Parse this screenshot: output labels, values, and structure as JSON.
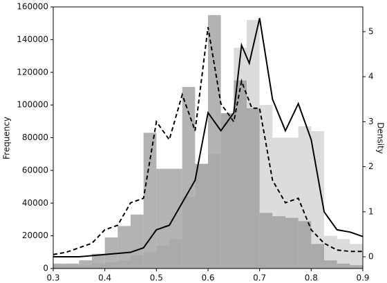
{
  "chart_data": {
    "type": "histogram",
    "ylabel": "Frequency",
    "y2label": "Density",
    "bins": [
      0.3,
      0.325,
      0.35,
      0.375,
      0.4,
      0.425,
      0.45,
      0.475,
      0.5,
      0.525,
      0.55,
      0.575,
      0.6,
      0.625,
      0.65,
      0.675,
      0.7,
      0.725,
      0.75,
      0.775,
      0.8,
      0.825,
      0.85,
      0.875,
      0.9
    ],
    "xlim": [
      0.3,
      0.9
    ],
    "xticks": [
      0.3,
      0.4,
      0.5,
      0.6,
      0.7,
      0.8,
      0.9
    ],
    "ylim": [
      0,
      160000
    ],
    "yticks": [
      0,
      20000,
      40000,
      60000,
      80000,
      100000,
      120000,
      140000,
      160000
    ],
    "y2lim": [
      -0.26,
      5.55
    ],
    "y2ticks": [
      0,
      1,
      2,
      3,
      4,
      5
    ],
    "series": [
      {
        "color": "#d0d0d0",
        "values": [
          2000,
          2000,
          2000,
          3000,
          4000,
          5000,
          8000,
          10000,
          14000,
          18000,
          44000,
          64000,
          70000,
          95000,
          135000,
          152000,
          100000,
          80000,
          80000,
          87000,
          84000,
          20000,
          18000,
          15000
        ]
      },
      {
        "color": "#9a9a9a",
        "values": [
          3000,
          3000,
          5000,
          9000,
          19000,
          26000,
          33000,
          83000,
          61000,
          61000,
          111000,
          64000,
          155000,
          95000,
          115000,
          98000,
          34000,
          32000,
          31000,
          29000,
          15000,
          5000,
          3000,
          2000
        ]
      }
    ],
    "lines": [
      {
        "color": "#000000",
        "linestyle": "dashed",
        "axis": "y2",
        "x": [
          0.3,
          0.325,
          0.35,
          0.375,
          0.4,
          0.425,
          0.45,
          0.475,
          0.5,
          0.525,
          0.55,
          0.575,
          0.6,
          0.625,
          0.65,
          0.665,
          0.685,
          0.7,
          0.725,
          0.75,
          0.775,
          0.8,
          0.825,
          0.85,
          0.875,
          0.9
        ],
        "values": [
          0.05,
          0.1,
          0.2,
          0.3,
          0.6,
          0.7,
          1.2,
          1.3,
          3.0,
          2.6,
          3.6,
          2.8,
          5.1,
          3.4,
          3.0,
          3.9,
          3.3,
          3.3,
          1.7,
          1.2,
          1.3,
          0.6,
          0.3,
          0.15,
          0.12,
          0.12
        ]
      },
      {
        "color": "#000000",
        "linestyle": "solid",
        "axis": "y2",
        "x": [
          0.3,
          0.35,
          0.4,
          0.45,
          0.475,
          0.5,
          0.525,
          0.55,
          0.575,
          0.6,
          0.625,
          0.65,
          0.665,
          0.68,
          0.7,
          0.725,
          0.75,
          0.775,
          0.8,
          0.825,
          0.85,
          0.875,
          0.9
        ],
        "values": [
          0.0,
          0.0,
          0.05,
          0.1,
          0.2,
          0.6,
          0.7,
          1.2,
          1.7,
          3.2,
          2.8,
          3.2,
          4.7,
          4.3,
          5.3,
          3.5,
          2.8,
          3.4,
          2.6,
          1.0,
          0.6,
          0.55,
          0.45
        ]
      }
    ]
  }
}
